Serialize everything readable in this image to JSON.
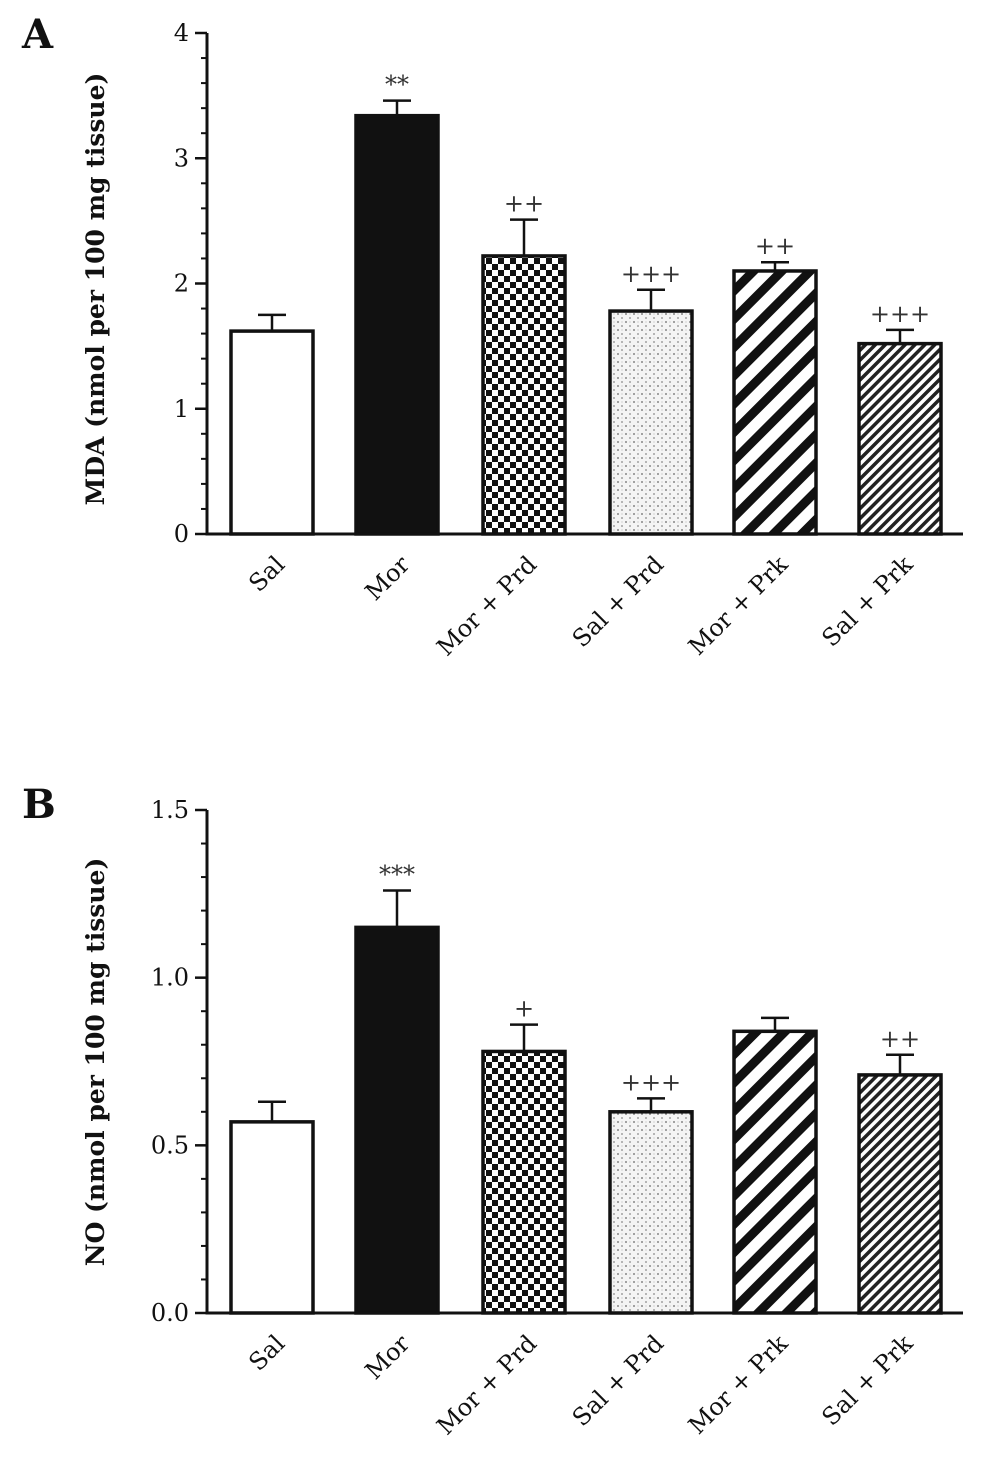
{
  "chart_data": [
    {
      "panel_label": "A",
      "type": "bar",
      "ylabel": "MDA (nmol per 100 mg tissue)",
      "ylim": [
        0,
        4
      ],
      "yticks": [
        "0",
        "1",
        "2",
        "3",
        "4"
      ],
      "ytick_values": [
        0,
        1,
        2,
        3,
        4
      ],
      "minor_ticks_per_interval": 5,
      "categories": [
        "Sal",
        "Mor",
        "Mor + Prd",
        "Sal + Prd",
        "Mor + Prk",
        "Sal + Prk"
      ],
      "values": [
        1.62,
        3.34,
        2.22,
        1.78,
        2.1,
        1.52
      ],
      "errors": [
        0.13,
        0.12,
        0.29,
        0.17,
        0.07,
        0.11
      ],
      "annotations": [
        "",
        "**",
        "++",
        "+++",
        "++",
        "+++"
      ],
      "fills": [
        "white",
        "black",
        "checker",
        "dots",
        "diag-wide",
        "diag-fine"
      ],
      "grid": false
    },
    {
      "panel_label": "B",
      "type": "bar",
      "ylabel": "NO (nmol per 100 mg tissue)",
      "ylim": [
        0,
        1.5
      ],
      "yticks": [
        "0.0",
        "0.5",
        "1.0",
        "1.5"
      ],
      "ytick_values": [
        0,
        0.5,
        1.0,
        1.5
      ],
      "minor_ticks_per_interval": 5,
      "categories": [
        "Sal",
        "Mor",
        "Mor + Prd",
        "Sal + Prd",
        "Mor + Prk",
        "Sal + Prk"
      ],
      "values": [
        0.57,
        1.15,
        0.78,
        0.6,
        0.84,
        0.71
      ],
      "errors": [
        0.06,
        0.11,
        0.08,
        0.04,
        0.04,
        0.06
      ],
      "annotations": [
        "",
        "***",
        "+",
        "+++",
        "",
        "++"
      ],
      "fills": [
        "white",
        "black",
        "checker",
        "dots",
        "diag-wide",
        "diag-fine"
      ],
      "grid": false
    }
  ]
}
